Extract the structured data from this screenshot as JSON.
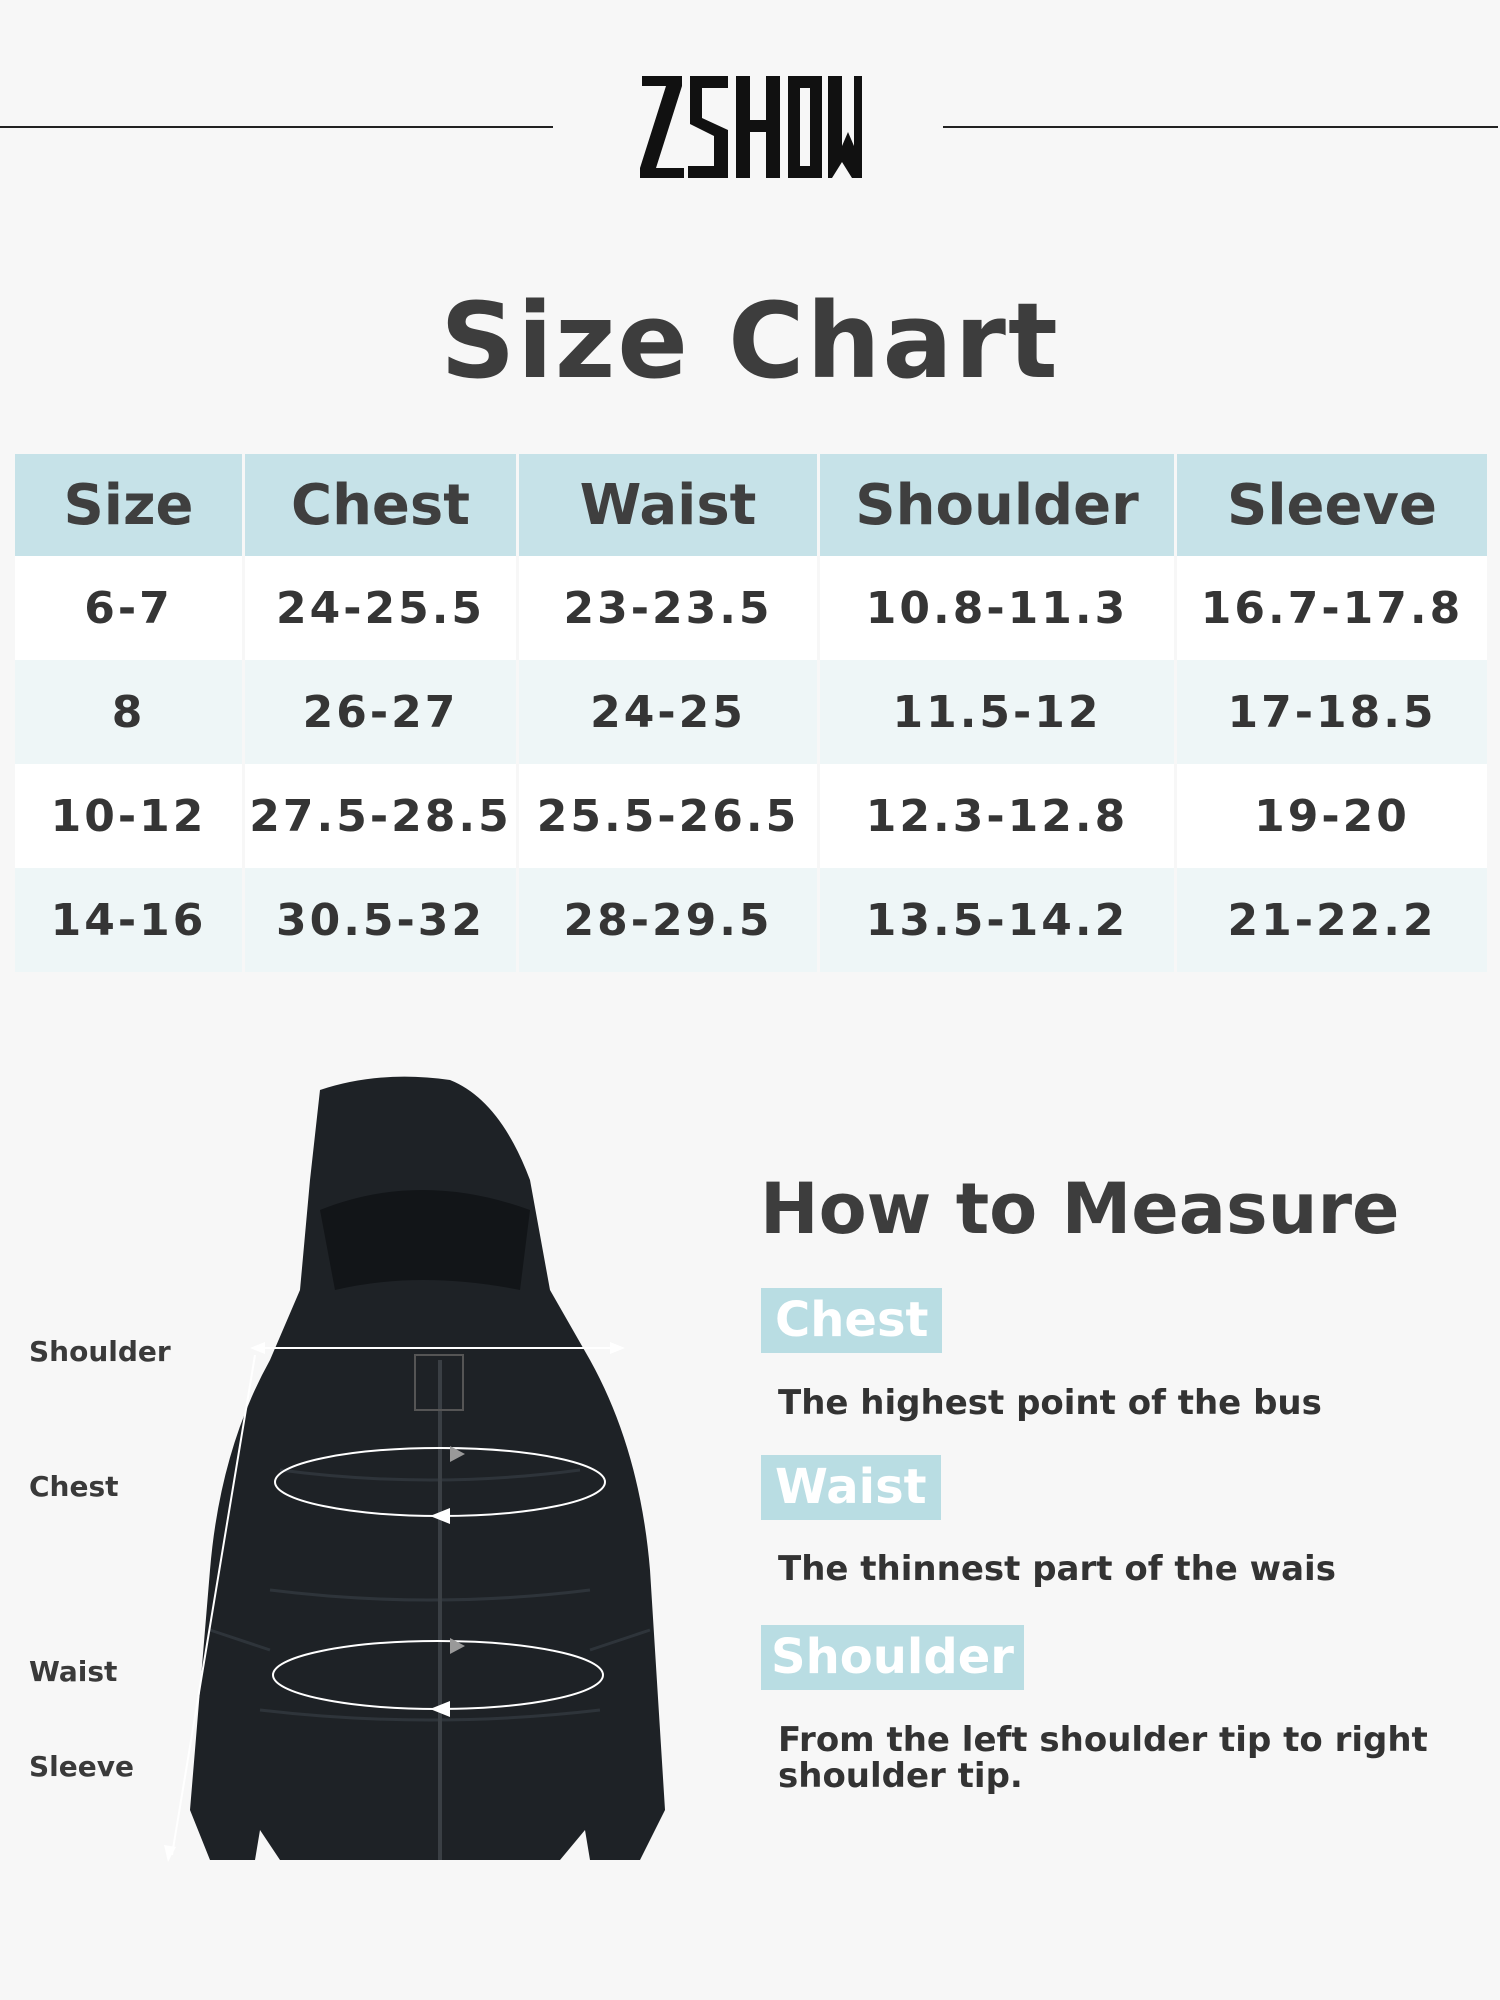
{
  "brand": {
    "logo_text": "ZSHOW"
  },
  "title": "Size Chart",
  "size_table": {
    "headers": [
      "Size",
      "Chest",
      "Waist",
      "Shoulder",
      "Sleeve"
    ],
    "rows": [
      [
        "6-7",
        "24-25.5",
        "23-23.5",
        "10.8-11.3",
        "16.7-17.8"
      ],
      [
        "8",
        "26-27",
        "24-25",
        "11.5-12",
        "17-18.5"
      ],
      [
        "10-12",
        "27.5-28.5",
        "25.5-26.5",
        "12.3-12.8",
        "19-20"
      ],
      [
        "14-16",
        "30.5-32",
        "28-29.5",
        "13.5-14.2",
        "21-22.2"
      ]
    ]
  },
  "diagram_labels": {
    "shoulder": "Shoulder",
    "chest": "Chest",
    "waist": "Waist",
    "sleeve": "Sleeve"
  },
  "how_to_measure": {
    "title": "How to Measure",
    "items": [
      {
        "label": "Chest",
        "description": "The highest point of the bus"
      },
      {
        "label": "Waist",
        "description": "The thinnest part of the wais"
      },
      {
        "label": "Shoulder",
        "description": "From the left shoulder tip to right shoulder tip."
      }
    ]
  },
  "colors": {
    "header_bg": "#c6e2e8",
    "badge_bg": "#b9dde3",
    "alt_row_bg": "#eef6f7",
    "text": "#404040"
  }
}
